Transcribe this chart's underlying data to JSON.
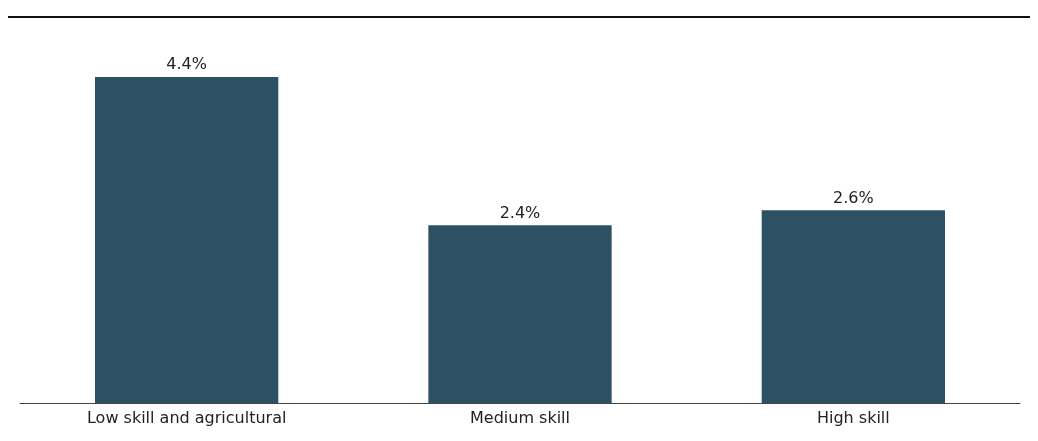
{
  "chart_data": {
    "type": "bar",
    "categories": [
      "Low skill and agricultural",
      "Medium skill",
      "High skill"
    ],
    "values": [
      4.4,
      2.4,
      2.6
    ],
    "color": "#2e5064",
    "value_labels": [
      "4.4%",
      "2.4%",
      "2.6%"
    ]
  }
}
